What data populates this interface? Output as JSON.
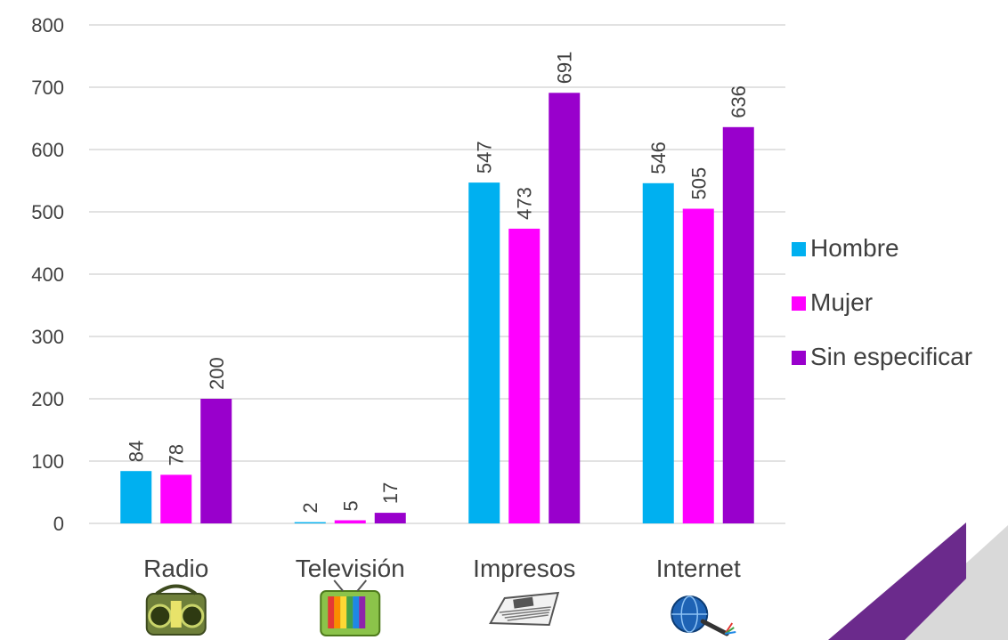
{
  "chart_data": {
    "type": "bar",
    "categories": [
      "Radio",
      "Televisión",
      "Impresos",
      "Internet"
    ],
    "category_icons": [
      "boombox-radio-icon",
      "color-television-icon",
      "newspaper-icon",
      "globe-network-cable-icon"
    ],
    "series": [
      {
        "name": "Hombre",
        "color": "#00B0F0",
        "values": [
          84,
          2,
          547,
          546
        ]
      },
      {
        "name": "Mujer",
        "color": "#FF00FF",
        "values": [
          78,
          5,
          473,
          505
        ]
      },
      {
        "name": "Sin especificar",
        "color": "#9900CC",
        "values": [
          200,
          17,
          691,
          636
        ]
      }
    ],
    "ylim": [
      0,
      800
    ],
    "yticks": [
      0,
      100,
      200,
      300,
      400,
      500,
      600,
      700,
      800
    ],
    "grid": true,
    "legend_position": "right",
    "data_labels": true,
    "data_label_orientation": "vertical"
  },
  "decoration": {
    "corner_accent_color": "#6B2A8C",
    "corner_gray_color": "#D9D9D9"
  }
}
